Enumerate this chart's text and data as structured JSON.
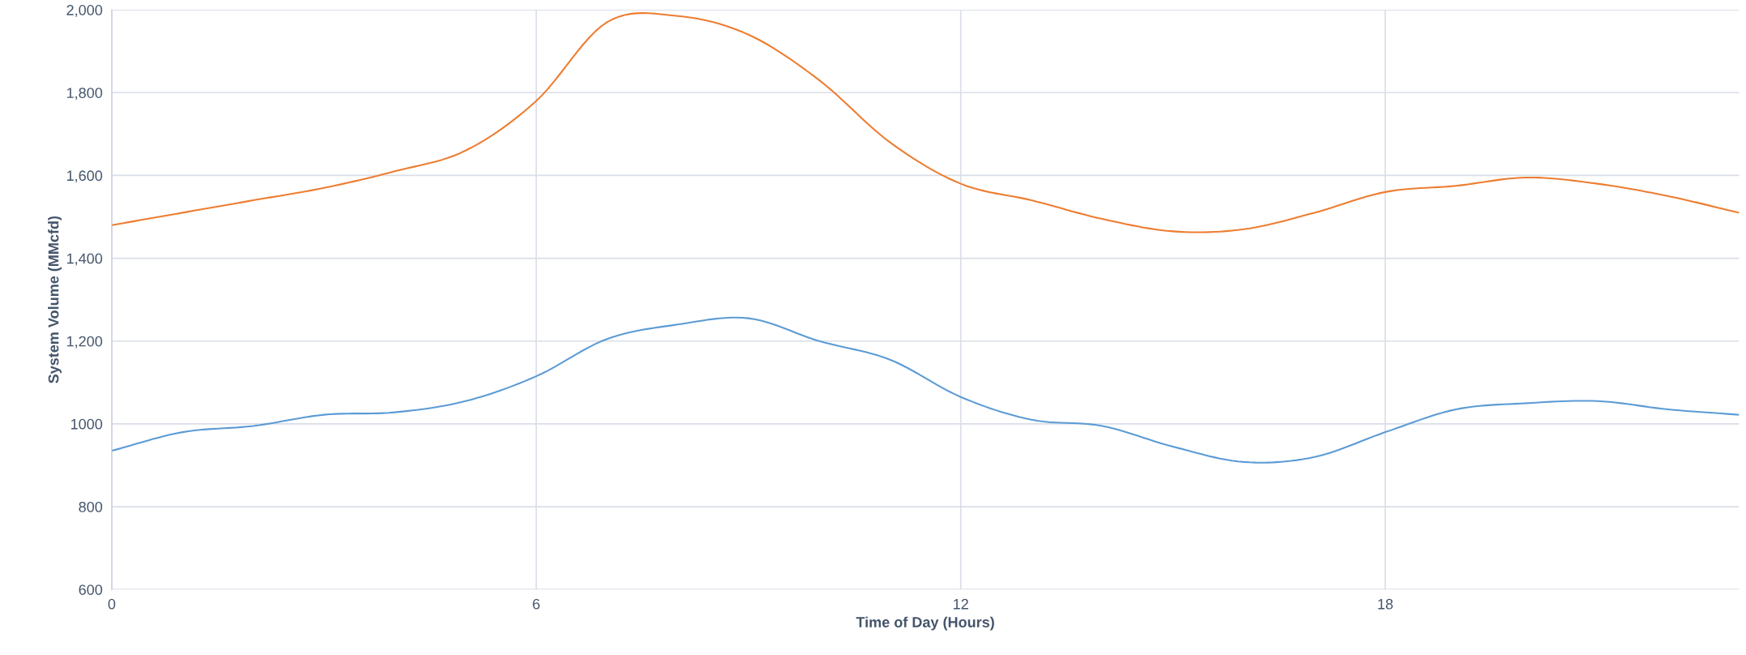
{
  "chart_data": {
    "type": "line",
    "xlabel": "Time of Day (Hours)",
    "ylabel": "System Volume (MMcfd)",
    "x": [
      0,
      1,
      2,
      3,
      4,
      5,
      6,
      7,
      8,
      9,
      10,
      11,
      12,
      13,
      14,
      15,
      16,
      17,
      18,
      19,
      20,
      21,
      22,
      23
    ],
    "series": [
      {
        "color": "#ed7d31",
        "values": [
          1480,
          1510,
          1540,
          1570,
          1610,
          1660,
          1780,
          1970,
          1985,
          1940,
          1830,
          1680,
          1580,
          1540,
          1495,
          1465,
          1470,
          1510,
          1560,
          1575,
          1595,
          1580,
          1550,
          1510
        ]
      },
      {
        "color": "#5b9bd5",
        "values": [
          935,
          980,
          995,
          1022,
          1028,
          1055,
          1115,
          1205,
          1240,
          1255,
          1200,
          1155,
          1065,
          1010,
          995,
          945,
          908,
          920,
          980,
          1035,
          1050,
          1055,
          1035,
          1022
        ]
      }
    ],
    "xlim": [
      0,
      23
    ],
    "xticks": [
      0,
      6,
      12,
      18
    ],
    "ylim": [
      600,
      2000
    ],
    "yticks": [
      600,
      800,
      1000,
      {
        "value": 1200,
        "label": "1,200"
      },
      {
        "value": 1400,
        "label": "1,400"
      },
      {
        "value": 1600,
        "label": "1,600"
      },
      {
        "value": 1800,
        "label": "1,800"
      },
      {
        "value": 2000,
        "label": "2,000"
      }
    ],
    "grid": true,
    "marker": "none",
    "line_style": "solid"
  }
}
